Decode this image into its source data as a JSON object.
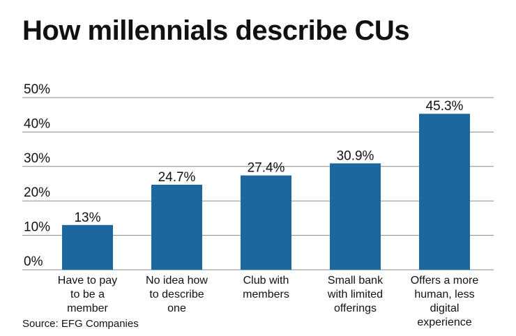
{
  "chart_data": {
    "type": "bar",
    "title": "How millennials describe CUs",
    "source": "Source: EFG Companies",
    "categories": [
      [
        "Have to pay",
        "to be a",
        "member"
      ],
      [
        "No idea how",
        "to describe",
        "one"
      ],
      [
        "Club with",
        "members"
      ],
      [
        "Small bank",
        "with limited",
        "offerings"
      ],
      [
        "Offers a more",
        "human, less",
        "digital",
        "experience"
      ]
    ],
    "values": [
      13,
      24.7,
      27.4,
      30.9,
      45.3
    ],
    "data_labels": [
      "13%",
      "24.7%",
      "27.4%",
      "30.9%",
      "45.3%"
    ],
    "yticks": [
      0,
      10,
      20,
      30,
      40,
      50
    ],
    "ytick_labels": [
      "0%",
      "10%",
      "20%",
      "30%",
      "40%",
      "50%"
    ],
    "ylim": [
      0,
      50
    ],
    "grid": true,
    "xlabel": "",
    "ylabel": "",
    "bar_color": "#1d67a1",
    "grid_color": "#8a8a8a"
  }
}
